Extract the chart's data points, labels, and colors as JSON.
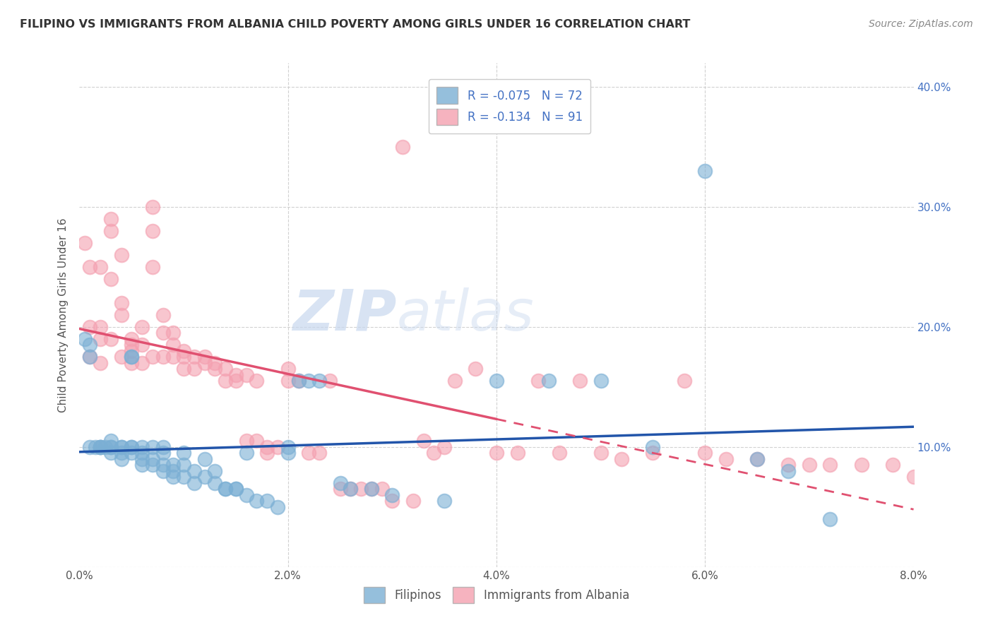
{
  "title": "FILIPINO VS IMMIGRANTS FROM ALBANIA CHILD POVERTY AMONG GIRLS UNDER 16 CORRELATION CHART",
  "source": "Source: ZipAtlas.com",
  "ylabel": "Child Poverty Among Girls Under 16",
  "ytick_vals": [
    0.0,
    0.1,
    0.2,
    0.3,
    0.4
  ],
  "ytick_labels_left": [
    "",
    "",
    "",
    "",
    ""
  ],
  "ytick_labels_right": [
    "",
    "10.0%",
    "20.0%",
    "30.0%",
    "40.0%"
  ],
  "xtick_vals": [
    0.0,
    0.02,
    0.04,
    0.06,
    0.08
  ],
  "xtick_labels": [
    "0.0%",
    "2.0%",
    "4.0%",
    "6.0%",
    "8.0%"
  ],
  "legend_top_labels": [
    "R = -0.075   N = 72",
    "R = -0.134   N = 91"
  ],
  "legend_bottom_labels": [
    "Filipinos",
    "Immigrants from Albania"
  ],
  "filipinos_color": "#7bafd4",
  "albania_color": "#f4a0b0",
  "trendline_filipino_color": "#2255aa",
  "trendline_albania_color": "#e05070",
  "watermark_zip": "ZIP",
  "watermark_atlas": "atlas",
  "background_color": "#ffffff",
  "grid_color": "#cccccc",
  "axis_label_color": "#4472c4",
  "title_color": "#333333",
  "filipinos_x": [
    0.0005,
    0.001,
    0.001,
    0.001,
    0.0015,
    0.002,
    0.002,
    0.002,
    0.0025,
    0.003,
    0.003,
    0.003,
    0.003,
    0.004,
    0.004,
    0.004,
    0.004,
    0.005,
    0.005,
    0.005,
    0.005,
    0.005,
    0.006,
    0.006,
    0.006,
    0.006,
    0.007,
    0.007,
    0.007,
    0.008,
    0.008,
    0.008,
    0.008,
    0.009,
    0.009,
    0.009,
    0.01,
    0.01,
    0.01,
    0.011,
    0.011,
    0.012,
    0.012,
    0.013,
    0.013,
    0.014,
    0.014,
    0.015,
    0.015,
    0.016,
    0.016,
    0.017,
    0.018,
    0.019,
    0.02,
    0.02,
    0.021,
    0.022,
    0.023,
    0.025,
    0.026,
    0.028,
    0.03,
    0.035,
    0.04,
    0.045,
    0.05,
    0.055,
    0.06,
    0.065,
    0.068,
    0.072
  ],
  "filipinos_y": [
    0.19,
    0.185,
    0.175,
    0.1,
    0.1,
    0.1,
    0.1,
    0.1,
    0.1,
    0.105,
    0.1,
    0.1,
    0.095,
    0.1,
    0.1,
    0.095,
    0.09,
    0.175,
    0.175,
    0.1,
    0.1,
    0.095,
    0.1,
    0.095,
    0.09,
    0.085,
    0.1,
    0.09,
    0.085,
    0.1,
    0.095,
    0.085,
    0.08,
    0.085,
    0.08,
    0.075,
    0.095,
    0.085,
    0.075,
    0.08,
    0.07,
    0.09,
    0.075,
    0.08,
    0.07,
    0.065,
    0.065,
    0.065,
    0.065,
    0.095,
    0.06,
    0.055,
    0.055,
    0.05,
    0.1,
    0.095,
    0.155,
    0.155,
    0.155,
    0.07,
    0.065,
    0.065,
    0.06,
    0.055,
    0.155,
    0.155,
    0.155,
    0.1,
    0.33,
    0.09,
    0.08,
    0.04
  ],
  "albania_x": [
    0.0005,
    0.001,
    0.001,
    0.001,
    0.002,
    0.002,
    0.002,
    0.002,
    0.003,
    0.003,
    0.003,
    0.003,
    0.004,
    0.004,
    0.004,
    0.004,
    0.005,
    0.005,
    0.005,
    0.005,
    0.006,
    0.006,
    0.006,
    0.007,
    0.007,
    0.007,
    0.007,
    0.008,
    0.008,
    0.008,
    0.009,
    0.009,
    0.009,
    0.01,
    0.01,
    0.01,
    0.011,
    0.011,
    0.012,
    0.012,
    0.013,
    0.013,
    0.014,
    0.014,
    0.015,
    0.015,
    0.016,
    0.016,
    0.017,
    0.017,
    0.018,
    0.018,
    0.019,
    0.02,
    0.02,
    0.021,
    0.022,
    0.023,
    0.024,
    0.025,
    0.026,
    0.027,
    0.028,
    0.029,
    0.03,
    0.031,
    0.032,
    0.033,
    0.034,
    0.035,
    0.036,
    0.038,
    0.04,
    0.042,
    0.044,
    0.046,
    0.048,
    0.05,
    0.052,
    0.055,
    0.058,
    0.06,
    0.062,
    0.065,
    0.068,
    0.07,
    0.072,
    0.075,
    0.078,
    0.08,
    0.082
  ],
  "albania_y": [
    0.27,
    0.25,
    0.2,
    0.175,
    0.25,
    0.2,
    0.19,
    0.17,
    0.29,
    0.28,
    0.24,
    0.19,
    0.26,
    0.22,
    0.21,
    0.175,
    0.19,
    0.185,
    0.18,
    0.17,
    0.2,
    0.185,
    0.17,
    0.3,
    0.28,
    0.25,
    0.175,
    0.21,
    0.195,
    0.175,
    0.195,
    0.185,
    0.175,
    0.18,
    0.175,
    0.165,
    0.175,
    0.165,
    0.175,
    0.17,
    0.17,
    0.165,
    0.165,
    0.155,
    0.16,
    0.155,
    0.16,
    0.105,
    0.155,
    0.105,
    0.1,
    0.095,
    0.1,
    0.165,
    0.155,
    0.155,
    0.095,
    0.095,
    0.155,
    0.065,
    0.065,
    0.065,
    0.065,
    0.065,
    0.055,
    0.35,
    0.055,
    0.105,
    0.095,
    0.1,
    0.155,
    0.165,
    0.095,
    0.095,
    0.155,
    0.095,
    0.155,
    0.095,
    0.09,
    0.095,
    0.155,
    0.095,
    0.09,
    0.09,
    0.085,
    0.085,
    0.085,
    0.085,
    0.085,
    0.075,
    0.065
  ]
}
